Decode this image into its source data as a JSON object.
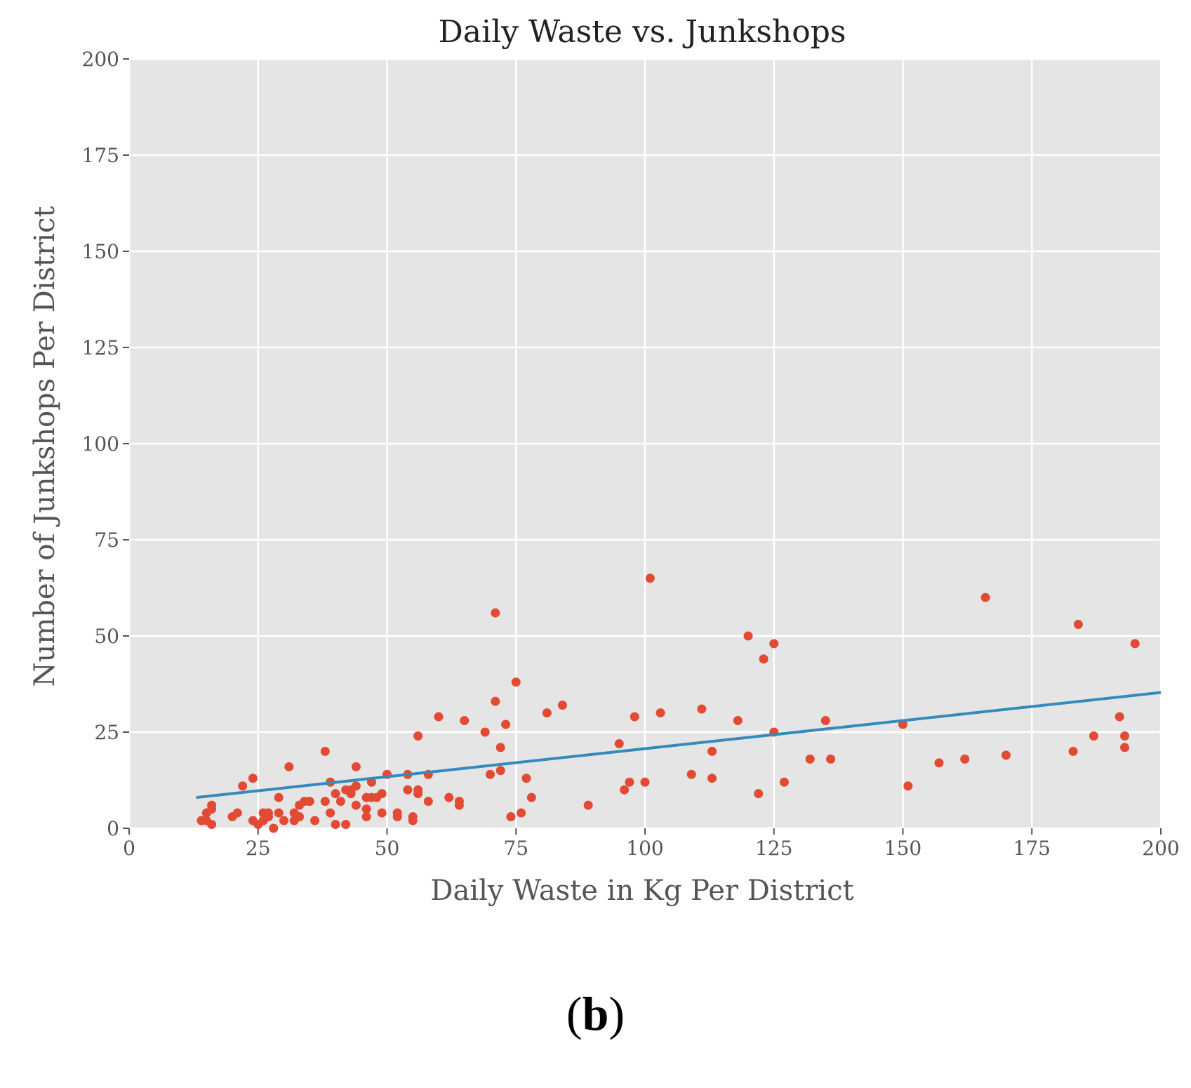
{
  "chart_data": {
    "type": "scatter",
    "title": "Daily Waste vs. Junkshops",
    "xlabel": "Daily Waste in Kg Per District",
    "ylabel": "Number of Junkshops Per District",
    "xlim": [
      0,
      200
    ],
    "ylim": [
      0,
      200
    ],
    "xticks": [
      0,
      25,
      50,
      75,
      100,
      125,
      150,
      175,
      200
    ],
    "yticks": [
      0,
      25,
      50,
      75,
      100,
      125,
      150,
      175,
      200
    ],
    "grid": true,
    "point_color": "#E24A33",
    "line_color": "#348ABD",
    "background_color": "#E5E5E5",
    "points": [
      [
        14,
        2
      ],
      [
        15,
        4
      ],
      [
        15,
        2
      ],
      [
        16,
        1
      ],
      [
        16,
        5
      ],
      [
        16,
        6
      ],
      [
        20,
        3
      ],
      [
        21,
        4
      ],
      [
        22,
        11
      ],
      [
        24,
        13
      ],
      [
        24,
        2
      ],
      [
        25,
        1
      ],
      [
        26,
        4
      ],
      [
        26,
        2
      ],
      [
        27,
        3
      ],
      [
        27,
        4
      ],
      [
        28,
        0
      ],
      [
        29,
        4
      ],
      [
        29,
        8
      ],
      [
        30,
        2
      ],
      [
        31,
        16
      ],
      [
        32,
        2
      ],
      [
        32,
        4
      ],
      [
        33,
        6
      ],
      [
        33,
        3
      ],
      [
        34,
        7
      ],
      [
        35,
        7
      ],
      [
        36,
        2
      ],
      [
        38,
        7
      ],
      [
        38,
        20
      ],
      [
        39,
        4
      ],
      [
        39,
        12
      ],
      [
        40,
        1
      ],
      [
        40,
        9
      ],
      [
        41,
        7
      ],
      [
        42,
        10
      ],
      [
        42,
        1
      ],
      [
        43,
        10
      ],
      [
        43,
        9
      ],
      [
        44,
        16
      ],
      [
        44,
        6
      ],
      [
        44,
        11
      ],
      [
        46,
        3
      ],
      [
        46,
        5
      ],
      [
        46,
        8
      ],
      [
        47,
        12
      ],
      [
        47,
        8
      ],
      [
        48,
        8
      ],
      [
        49,
        9
      ],
      [
        49,
        4
      ],
      [
        50,
        14
      ],
      [
        52,
        4
      ],
      [
        52,
        3
      ],
      [
        54,
        10
      ],
      [
        54,
        14
      ],
      [
        55,
        3
      ],
      [
        55,
        2
      ],
      [
        56,
        9
      ],
      [
        56,
        10
      ],
      [
        56,
        24
      ],
      [
        58,
        14
      ],
      [
        58,
        7
      ],
      [
        60,
        29
      ],
      [
        62,
        8
      ],
      [
        64,
        7
      ],
      [
        64,
        6
      ],
      [
        65,
        28
      ],
      [
        69,
        25
      ],
      [
        70,
        14
      ],
      [
        71,
        33
      ],
      [
        71,
        56
      ],
      [
        72,
        15
      ],
      [
        72,
        21
      ],
      [
        73,
        27
      ],
      [
        74,
        3
      ],
      [
        75,
        38
      ],
      [
        76,
        4
      ],
      [
        77,
        13
      ],
      [
        78,
        8
      ],
      [
        81,
        30
      ],
      [
        84,
        32
      ],
      [
        89,
        6
      ],
      [
        95,
        22
      ],
      [
        96,
        10
      ],
      [
        97,
        12
      ],
      [
        98,
        29
      ],
      [
        100,
        12
      ],
      [
        101,
        65
      ],
      [
        103,
        30
      ],
      [
        109,
        14
      ],
      [
        111,
        31
      ],
      [
        113,
        13
      ],
      [
        113,
        20
      ],
      [
        118,
        28
      ],
      [
        120,
        50
      ],
      [
        122,
        9
      ],
      [
        123,
        44
      ],
      [
        125,
        48
      ],
      [
        125,
        25
      ],
      [
        127,
        12
      ],
      [
        132,
        18
      ],
      [
        135,
        28
      ],
      [
        136,
        18
      ],
      [
        150,
        27
      ],
      [
        151,
        11
      ],
      [
        157,
        17
      ],
      [
        162,
        18
      ],
      [
        166,
        60
      ],
      [
        170,
        19
      ],
      [
        183,
        20
      ],
      [
        184,
        53
      ],
      [
        187,
        24
      ],
      [
        192,
        29
      ],
      [
        193,
        24
      ],
      [
        193,
        21
      ],
      [
        195,
        48
      ]
    ],
    "regression_line": {
      "x": [
        13,
        200
      ],
      "y": [
        8,
        35.3
      ]
    }
  },
  "panel_label": {
    "open": "(",
    "letter": "b",
    "close": ")"
  }
}
